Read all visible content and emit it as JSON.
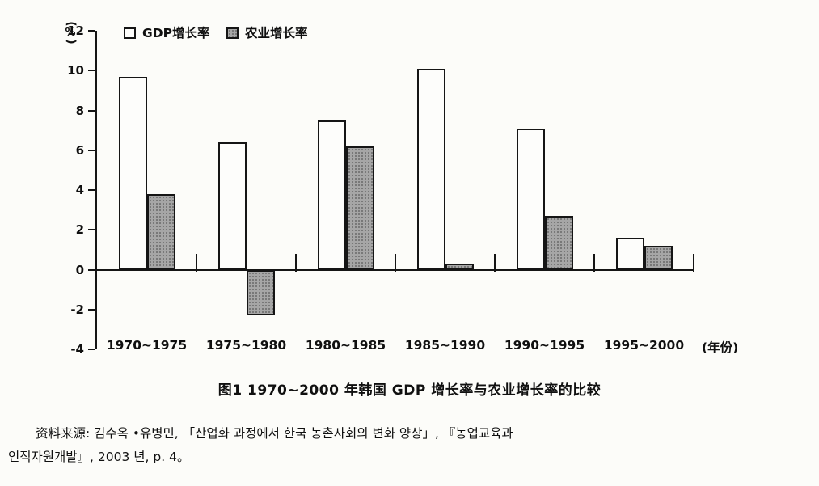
{
  "page": {
    "background": "#fcfcf9",
    "ink": "#101010"
  },
  "figure": {
    "source_lines": [
      "资料来源: 김수옥 •유병민, 「산업화 과정에서 한국 농촌사회의 변화 양상」, 『농업교육과",
      "인적자원개발』, 2003 년, p. 4。"
    ]
  },
  "chart_data": {
    "type": "bar",
    "title": "图1  1970~2000 年韩国 GDP 增长率与农业增长率的比较",
    "ylabel": "(%)",
    "xlabel": "(年份)",
    "ylim": [
      -4,
      12
    ],
    "yticks": [
      12,
      10,
      8,
      6,
      4,
      2,
      0,
      -2,
      -4
    ],
    "grid": false,
    "legend_position": "top-left-inside",
    "categories": [
      "1970~1975",
      "1975~1980",
      "1980~1985",
      "1985~1990",
      "1990~1995",
      "1995~2000"
    ],
    "series": [
      {
        "name": "GDP增长率",
        "fill": "#ffffff",
        "values": [
          9.7,
          6.4,
          7.5,
          10.1,
          7.1,
          1.6
        ]
      },
      {
        "name": "农业增长率",
        "fill": "#a6a6a6",
        "values": [
          3.8,
          -2.3,
          6.2,
          0.3,
          2.7,
          1.2
        ]
      }
    ]
  }
}
